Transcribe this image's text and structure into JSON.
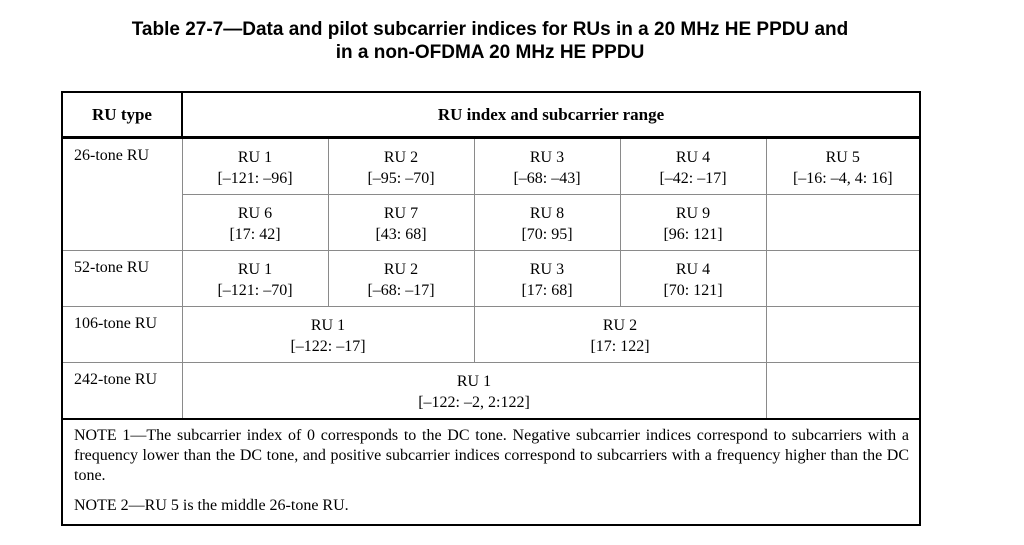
{
  "caption": {
    "line1": "Table 27-7—Data and pilot subcarrier indices for RUs in a 20 MHz HE PPDU and",
    "line2": "in a non-OFDMA 20 MHz HE PPDU"
  },
  "table": {
    "headers": {
      "ru_type": "RU type",
      "ru_index": "RU index and subcarrier range"
    },
    "rows": [
      {
        "label": "26-tone RU",
        "cells": [
          {
            "ru": "RU 1",
            "range": "[–121: –96]"
          },
          {
            "ru": "RU 2",
            "range": "[–95: –70]"
          },
          {
            "ru": "RU 3",
            "range": "[–68: –43]"
          },
          {
            "ru": "RU 4",
            "range": "[–42: –17]"
          },
          {
            "ru": "RU 5",
            "range": "[–16: –4, 4: 16]"
          }
        ]
      },
      {
        "label": "",
        "cells": [
          {
            "ru": "RU 6",
            "range": "[17: 42]"
          },
          {
            "ru": "RU 7",
            "range": "[43: 68]"
          },
          {
            "ru": "RU 8",
            "range": "[70: 95]"
          },
          {
            "ru": "RU 9",
            "range": "[96: 121]"
          }
        ]
      },
      {
        "label": "52-tone RU",
        "cells": [
          {
            "ru": "RU 1",
            "range": "[–121: –70]"
          },
          {
            "ru": "RU 2",
            "range": "[–68: –17]"
          },
          {
            "ru": "RU 3",
            "range": "[17: 68]"
          },
          {
            "ru": "RU 4",
            "range": "[70: 121]"
          }
        ]
      },
      {
        "label": "106-tone RU",
        "cells": [
          {
            "ru": "RU 1",
            "range": "[–122: –17]"
          },
          {
            "ru": "RU 2",
            "range": "[17: 122]"
          }
        ]
      },
      {
        "label": "242-tone RU",
        "cells": [
          {
            "ru": "RU 1",
            "range": "[–122: –2, 2:122]"
          }
        ]
      }
    ],
    "notes": {
      "note1": "NOTE 1—The subcarrier index of 0 corresponds to the DC tone. Negative subcarrier indices correspond to subcarriers with a frequency lower than the DC tone, and positive subcarrier indices correspond to subcarriers with a frequency higher than the DC tone.",
      "note2": "NOTE 2—RU 5 is the middle 26-tone RU."
    }
  }
}
